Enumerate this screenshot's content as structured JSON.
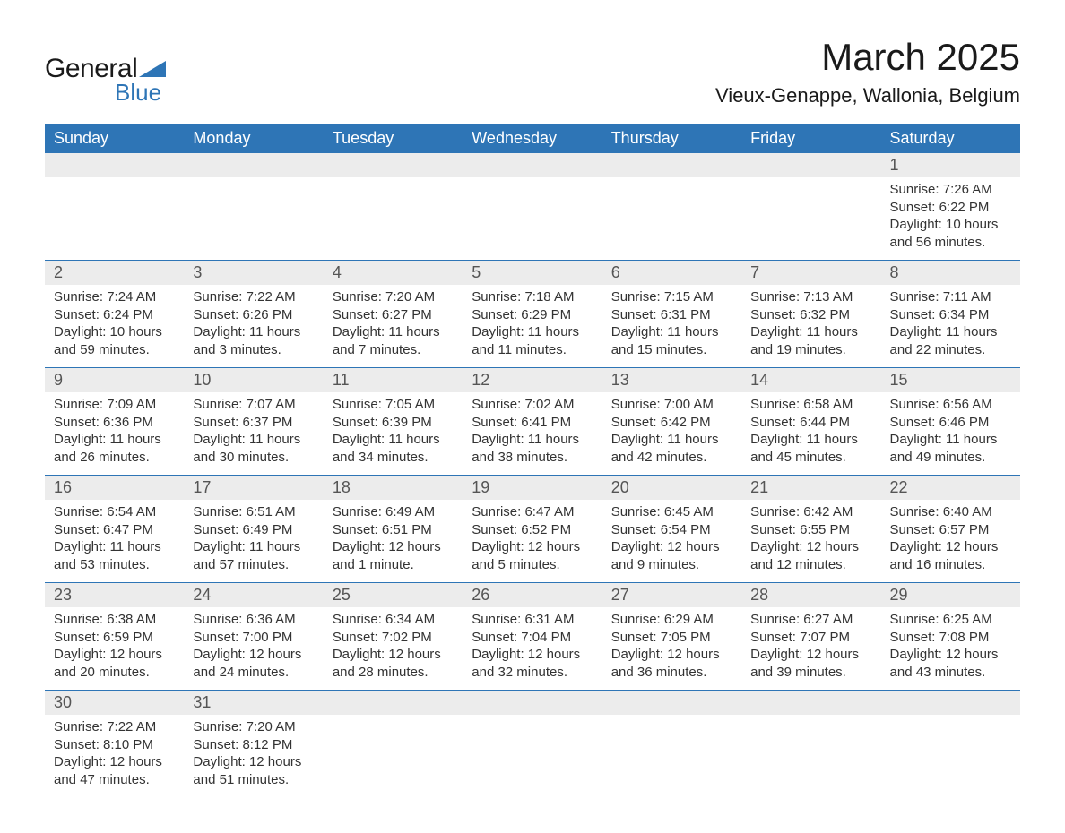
{
  "logo": {
    "text_general": "General",
    "text_blue": "Blue",
    "triangle_color": "#2e75b6"
  },
  "header": {
    "title": "March 2025",
    "subtitle": "Vieux-Genappe, Wallonia, Belgium"
  },
  "colors": {
    "header_bg": "#2e75b6",
    "header_text": "#ffffff",
    "daynum_bg": "#ececec",
    "row_border": "#2e75b6",
    "body_text": "#333333",
    "page_bg": "#ffffff"
  },
  "weekdays": [
    "Sunday",
    "Monday",
    "Tuesday",
    "Wednesday",
    "Thursday",
    "Friday",
    "Saturday"
  ],
  "weeks": [
    [
      null,
      null,
      null,
      null,
      null,
      null,
      {
        "n": "1",
        "sunrise": "Sunrise: 7:26 AM",
        "sunset": "Sunset: 6:22 PM",
        "daylight1": "Daylight: 10 hours",
        "daylight2": "and 56 minutes."
      }
    ],
    [
      {
        "n": "2",
        "sunrise": "Sunrise: 7:24 AM",
        "sunset": "Sunset: 6:24 PM",
        "daylight1": "Daylight: 10 hours",
        "daylight2": "and 59 minutes."
      },
      {
        "n": "3",
        "sunrise": "Sunrise: 7:22 AM",
        "sunset": "Sunset: 6:26 PM",
        "daylight1": "Daylight: 11 hours",
        "daylight2": "and 3 minutes."
      },
      {
        "n": "4",
        "sunrise": "Sunrise: 7:20 AM",
        "sunset": "Sunset: 6:27 PM",
        "daylight1": "Daylight: 11 hours",
        "daylight2": "and 7 minutes."
      },
      {
        "n": "5",
        "sunrise": "Sunrise: 7:18 AM",
        "sunset": "Sunset: 6:29 PM",
        "daylight1": "Daylight: 11 hours",
        "daylight2": "and 11 minutes."
      },
      {
        "n": "6",
        "sunrise": "Sunrise: 7:15 AM",
        "sunset": "Sunset: 6:31 PM",
        "daylight1": "Daylight: 11 hours",
        "daylight2": "and 15 minutes."
      },
      {
        "n": "7",
        "sunrise": "Sunrise: 7:13 AM",
        "sunset": "Sunset: 6:32 PM",
        "daylight1": "Daylight: 11 hours",
        "daylight2": "and 19 minutes."
      },
      {
        "n": "8",
        "sunrise": "Sunrise: 7:11 AM",
        "sunset": "Sunset: 6:34 PM",
        "daylight1": "Daylight: 11 hours",
        "daylight2": "and 22 minutes."
      }
    ],
    [
      {
        "n": "9",
        "sunrise": "Sunrise: 7:09 AM",
        "sunset": "Sunset: 6:36 PM",
        "daylight1": "Daylight: 11 hours",
        "daylight2": "and 26 minutes."
      },
      {
        "n": "10",
        "sunrise": "Sunrise: 7:07 AM",
        "sunset": "Sunset: 6:37 PM",
        "daylight1": "Daylight: 11 hours",
        "daylight2": "and 30 minutes."
      },
      {
        "n": "11",
        "sunrise": "Sunrise: 7:05 AM",
        "sunset": "Sunset: 6:39 PM",
        "daylight1": "Daylight: 11 hours",
        "daylight2": "and 34 minutes."
      },
      {
        "n": "12",
        "sunrise": "Sunrise: 7:02 AM",
        "sunset": "Sunset: 6:41 PM",
        "daylight1": "Daylight: 11 hours",
        "daylight2": "and 38 minutes."
      },
      {
        "n": "13",
        "sunrise": "Sunrise: 7:00 AM",
        "sunset": "Sunset: 6:42 PM",
        "daylight1": "Daylight: 11 hours",
        "daylight2": "and 42 minutes."
      },
      {
        "n": "14",
        "sunrise": "Sunrise: 6:58 AM",
        "sunset": "Sunset: 6:44 PM",
        "daylight1": "Daylight: 11 hours",
        "daylight2": "and 45 minutes."
      },
      {
        "n": "15",
        "sunrise": "Sunrise: 6:56 AM",
        "sunset": "Sunset: 6:46 PM",
        "daylight1": "Daylight: 11 hours",
        "daylight2": "and 49 minutes."
      }
    ],
    [
      {
        "n": "16",
        "sunrise": "Sunrise: 6:54 AM",
        "sunset": "Sunset: 6:47 PM",
        "daylight1": "Daylight: 11 hours",
        "daylight2": "and 53 minutes."
      },
      {
        "n": "17",
        "sunrise": "Sunrise: 6:51 AM",
        "sunset": "Sunset: 6:49 PM",
        "daylight1": "Daylight: 11 hours",
        "daylight2": "and 57 minutes."
      },
      {
        "n": "18",
        "sunrise": "Sunrise: 6:49 AM",
        "sunset": "Sunset: 6:51 PM",
        "daylight1": "Daylight: 12 hours",
        "daylight2": "and 1 minute."
      },
      {
        "n": "19",
        "sunrise": "Sunrise: 6:47 AM",
        "sunset": "Sunset: 6:52 PM",
        "daylight1": "Daylight: 12 hours",
        "daylight2": "and 5 minutes."
      },
      {
        "n": "20",
        "sunrise": "Sunrise: 6:45 AM",
        "sunset": "Sunset: 6:54 PM",
        "daylight1": "Daylight: 12 hours",
        "daylight2": "and 9 minutes."
      },
      {
        "n": "21",
        "sunrise": "Sunrise: 6:42 AM",
        "sunset": "Sunset: 6:55 PM",
        "daylight1": "Daylight: 12 hours",
        "daylight2": "and 12 minutes."
      },
      {
        "n": "22",
        "sunrise": "Sunrise: 6:40 AM",
        "sunset": "Sunset: 6:57 PM",
        "daylight1": "Daylight: 12 hours",
        "daylight2": "and 16 minutes."
      }
    ],
    [
      {
        "n": "23",
        "sunrise": "Sunrise: 6:38 AM",
        "sunset": "Sunset: 6:59 PM",
        "daylight1": "Daylight: 12 hours",
        "daylight2": "and 20 minutes."
      },
      {
        "n": "24",
        "sunrise": "Sunrise: 6:36 AM",
        "sunset": "Sunset: 7:00 PM",
        "daylight1": "Daylight: 12 hours",
        "daylight2": "and 24 minutes."
      },
      {
        "n": "25",
        "sunrise": "Sunrise: 6:34 AM",
        "sunset": "Sunset: 7:02 PM",
        "daylight1": "Daylight: 12 hours",
        "daylight2": "and 28 minutes."
      },
      {
        "n": "26",
        "sunrise": "Sunrise: 6:31 AM",
        "sunset": "Sunset: 7:04 PM",
        "daylight1": "Daylight: 12 hours",
        "daylight2": "and 32 minutes."
      },
      {
        "n": "27",
        "sunrise": "Sunrise: 6:29 AM",
        "sunset": "Sunset: 7:05 PM",
        "daylight1": "Daylight: 12 hours",
        "daylight2": "and 36 minutes."
      },
      {
        "n": "28",
        "sunrise": "Sunrise: 6:27 AM",
        "sunset": "Sunset: 7:07 PM",
        "daylight1": "Daylight: 12 hours",
        "daylight2": "and 39 minutes."
      },
      {
        "n": "29",
        "sunrise": "Sunrise: 6:25 AM",
        "sunset": "Sunset: 7:08 PM",
        "daylight1": "Daylight: 12 hours",
        "daylight2": "and 43 minutes."
      }
    ],
    [
      {
        "n": "30",
        "sunrise": "Sunrise: 7:22 AM",
        "sunset": "Sunset: 8:10 PM",
        "daylight1": "Daylight: 12 hours",
        "daylight2": "and 47 minutes."
      },
      {
        "n": "31",
        "sunrise": "Sunrise: 7:20 AM",
        "sunset": "Sunset: 8:12 PM",
        "daylight1": "Daylight: 12 hours",
        "daylight2": "and 51 minutes."
      },
      null,
      null,
      null,
      null,
      null
    ]
  ]
}
